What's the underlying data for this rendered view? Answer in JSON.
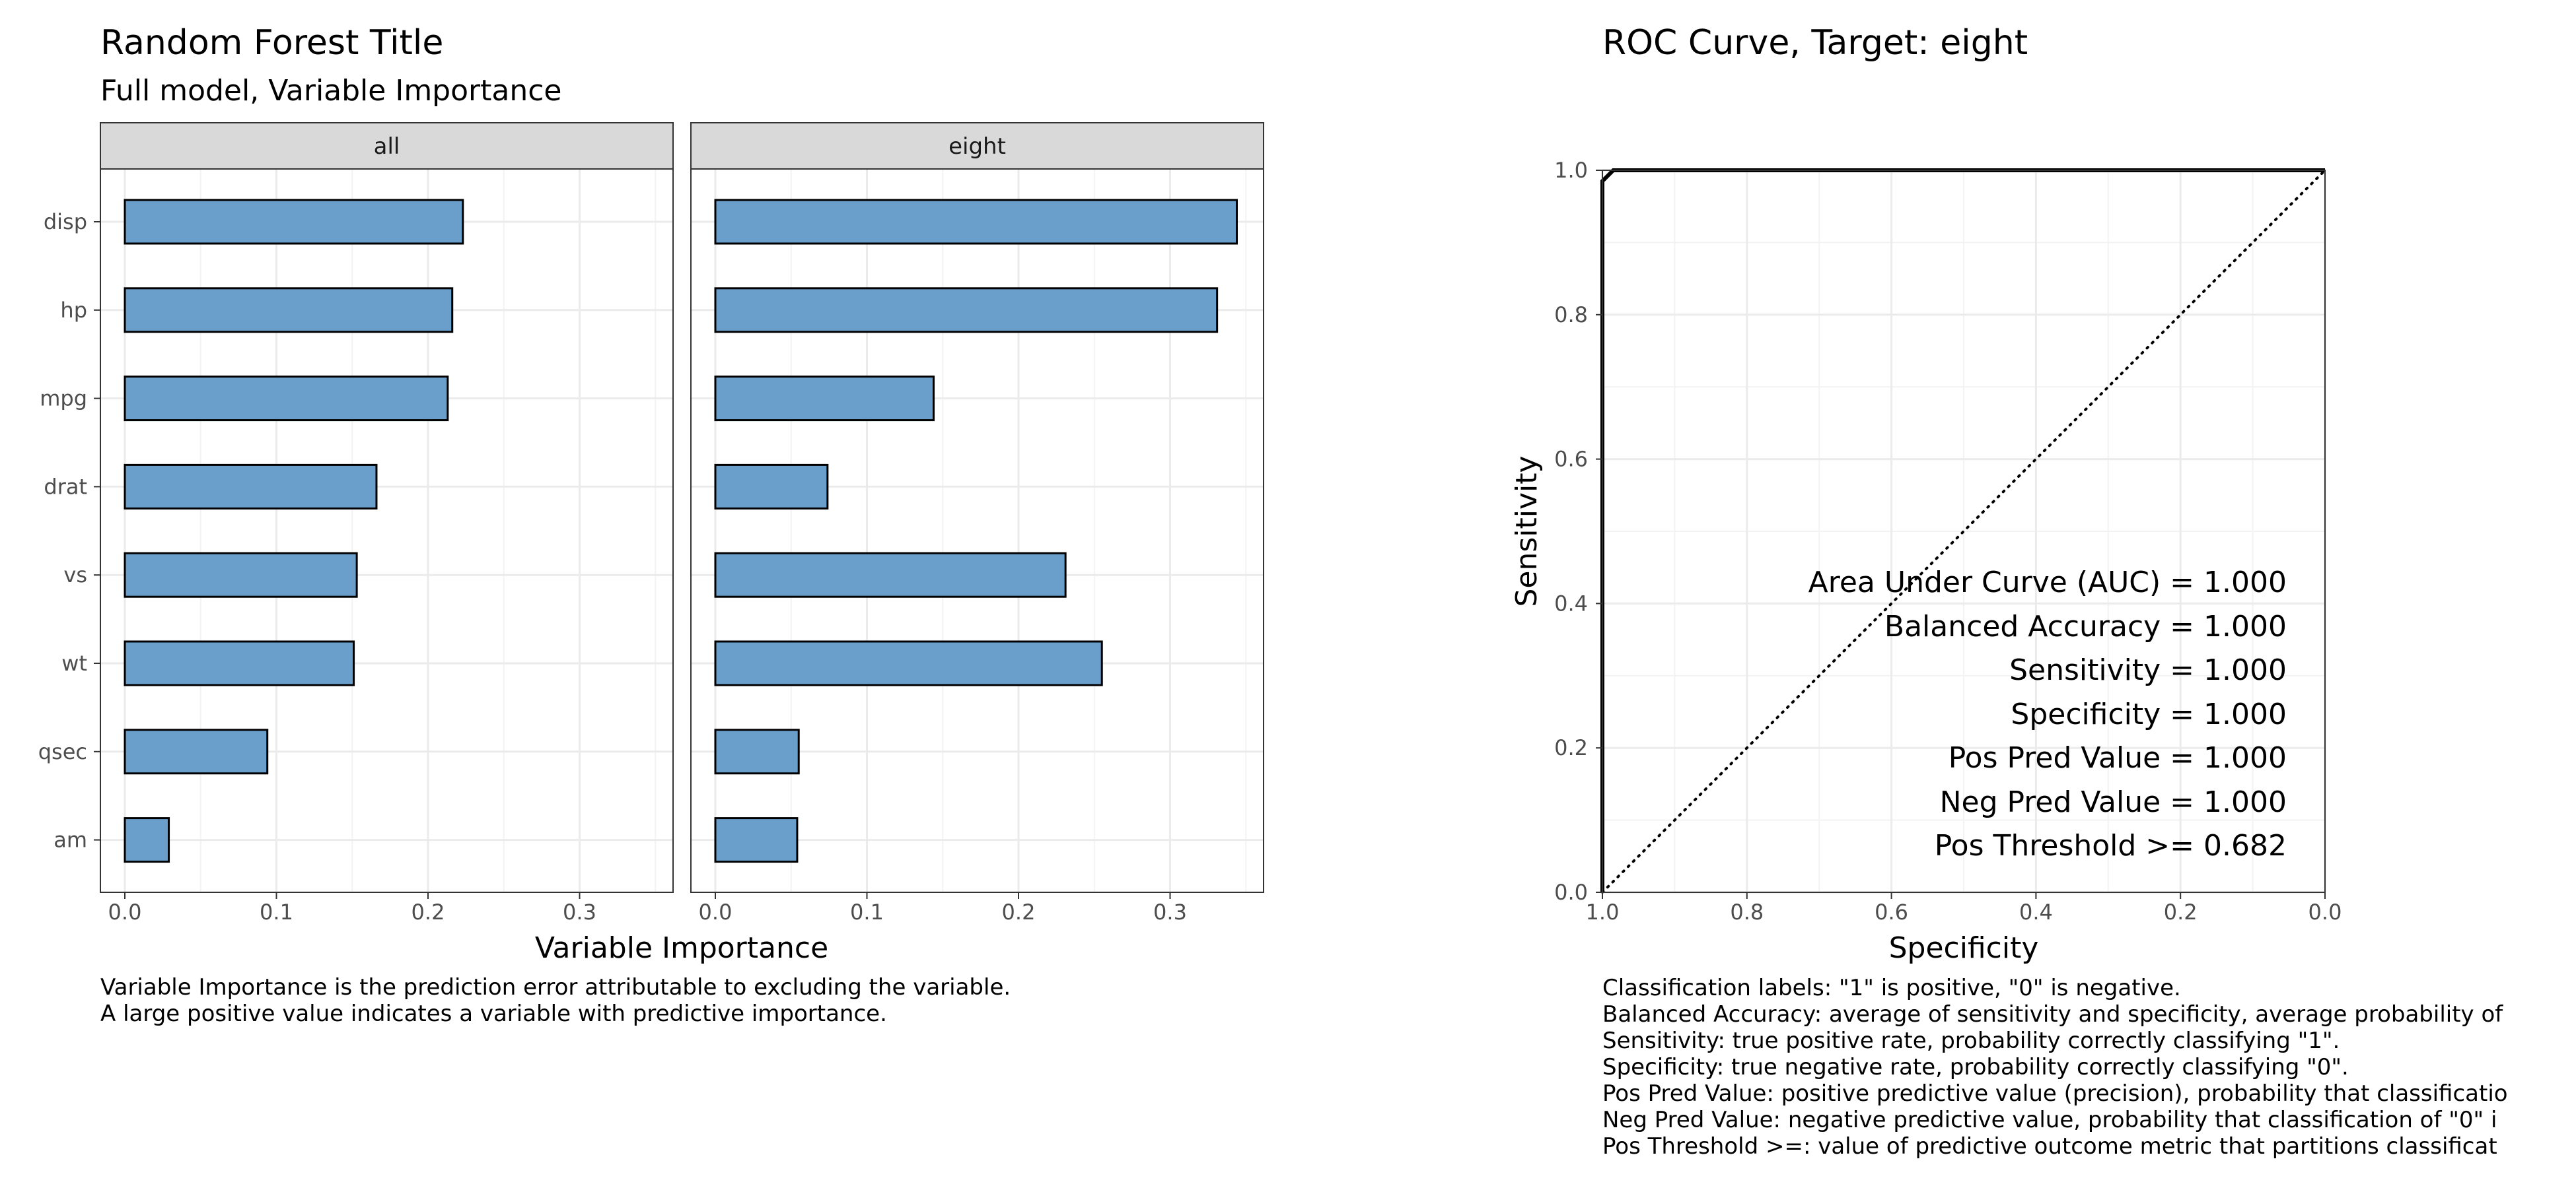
{
  "left": {
    "title": "Random Forest Title",
    "subtitle": "Full model, Variable Importance",
    "xlabel": "Variable Importance",
    "caption": [
      "Variable Importance is the prediction error attributable to excluding the variable.",
      "A large positive value indicates a variable with predictive importance."
    ]
  },
  "right": {
    "title": "ROC Curve, Target:  eight",
    "xlabel": "Specificity",
    "ylabel": "Sensitivity",
    "metrics": [
      "Area Under Curve (AUC) = 1.000",
      "Balanced Accuracy = 1.000",
      "Sensitivity = 1.000",
      "Specificity = 1.000",
      "Pos Pred Value = 1.000",
      "Neg Pred Value = 1.000",
      "Pos Threshold >= 0.682"
    ],
    "caption": [
      "Classification labels:  \"1\" is positive, \"0\" is negative.",
      "Balanced Accuracy:  average of sensitivity and specificity, average probability of",
      "Sensitivity:  true positive rate, probability correctly classifying \"1\".",
      "Specificity:  true negative rate, probability correctly classifying \"0\".",
      "Pos Pred Value:  positive predictive value (precision), probability that classificatio",
      "Neg Pred Value:  negative predictive value, probability that classification of \"0\" i",
      "Pos Threshold >=:  value of predictive outcome metric that partitions classificat"
    ]
  },
  "colors": {
    "bar_fill": "#6a9ecb",
    "bar_stroke": "#000000",
    "strip": "#d9d9d9",
    "grid": "#ebebeb"
  },
  "chart_data": [
    {
      "type": "bar",
      "orientation": "horizontal",
      "title": "Random Forest Title",
      "subtitle": "Full model, Variable Importance",
      "xlabel": "Variable Importance",
      "categories": [
        "disp",
        "hp",
        "mpg",
        "drat",
        "vs",
        "wt",
        "qsec",
        "am"
      ],
      "xlim": [
        0,
        0.36
      ],
      "xticks": [
        0.0,
        0.1,
        0.2,
        0.3
      ],
      "xtick_labels": [
        "0.0",
        "0.1",
        "0.2",
        "0.3"
      ],
      "grid": true,
      "facets": [
        {
          "name": "all",
          "values": [
            0.223,
            0.216,
            0.213,
            0.166,
            0.153,
            0.151,
            0.094,
            0.029
          ]
        },
        {
          "name": "eight",
          "values": [
            0.344,
            0.331,
            0.144,
            0.074,
            0.231,
            0.255,
            0.055,
            0.054
          ]
        }
      ]
    },
    {
      "type": "line",
      "title": "ROC Curve, Target:  eight",
      "xlabel": "Specificity",
      "ylabel": "Sensitivity",
      "x_reversed": true,
      "xlim": [
        1.0,
        0.0
      ],
      "ylim": [
        0.0,
        1.0
      ],
      "ticks": [
        0.0,
        0.2,
        0.4,
        0.6,
        0.8,
        1.0
      ],
      "xtick_labels": [
        "1.0",
        "0.8",
        "0.6",
        "0.4",
        "0.2",
        "0.0"
      ],
      "ytick_labels": [
        "0.0",
        "0.2",
        "0.4",
        "0.6",
        "0.8",
        "1.0"
      ],
      "grid": true,
      "series": [
        {
          "style": "solid",
          "x": [
            1.0,
            1.0,
            0.985,
            0.0
          ],
          "y": [
            0.0,
            0.985,
            1.0,
            1.0
          ]
        },
        {
          "style": "dotted",
          "x": [
            1.0,
            0.0
          ],
          "y": [
            0.0,
            1.0
          ]
        }
      ]
    }
  ]
}
